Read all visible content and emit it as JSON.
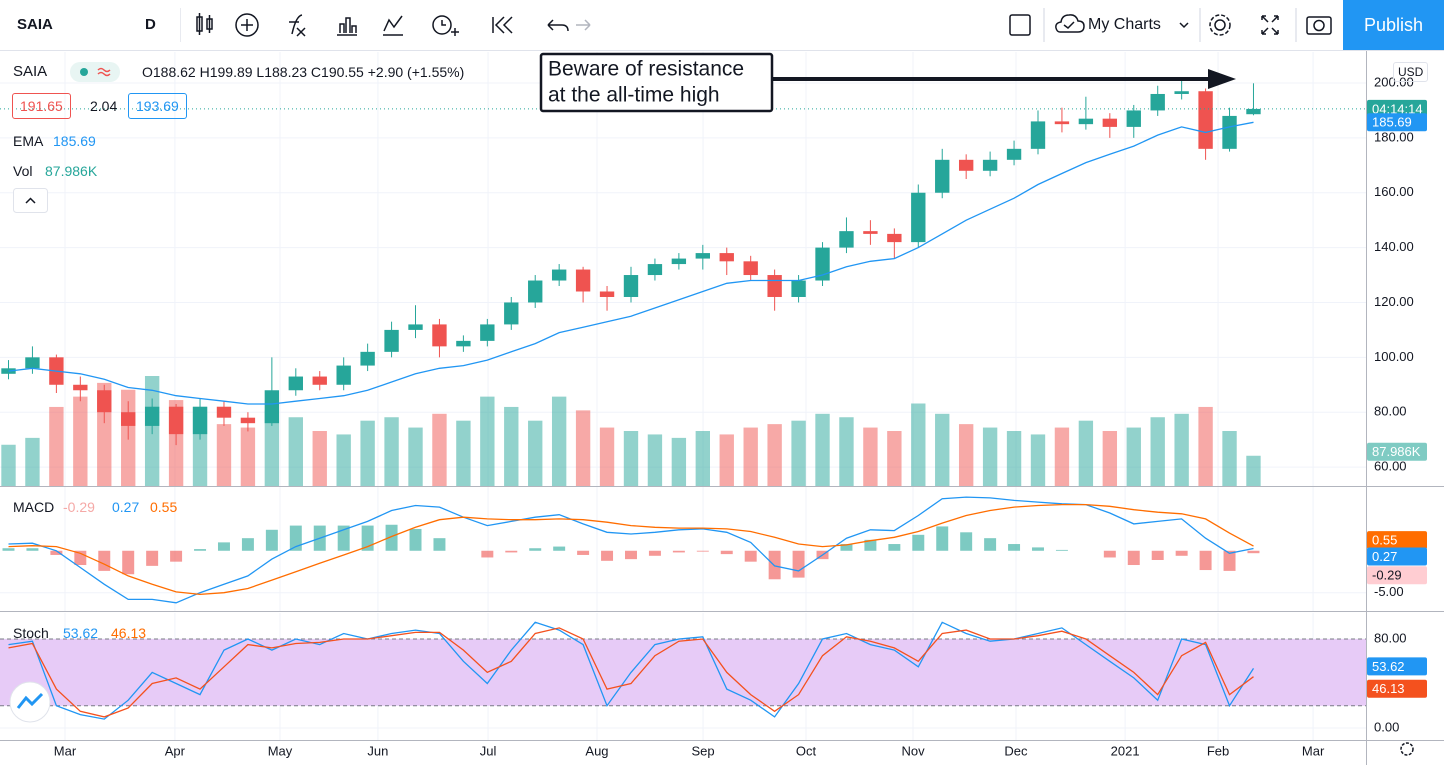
{
  "toolbar": {
    "symbol": "SAIA",
    "interval": "D",
    "my_charts": "My Charts",
    "publish": "Publish"
  },
  "legend": {
    "symbol": "SAIA",
    "ohlc": "O188.62 H199.89 L188.23 C190.55 +2.90 (+1.55%)",
    "bid": "191.65",
    "spread": "2.04",
    "ask": "193.69",
    "ema_label": "EMA",
    "ema_value": "185.69",
    "vol_label": "Vol",
    "vol_value": "87.986K",
    "countdown": "04:14:14",
    "currency": "USD",
    "macd_label": "MACD",
    "macd_hist": "-0.29",
    "macd_value": "0.27",
    "macd_signal": "0.55",
    "stoch_label": "Stoch",
    "stoch_k": "53.62",
    "stoch_d": "46.13"
  },
  "annotation": {
    "lines": [
      "Beware of resistance",
      "at the all-time high"
    ]
  },
  "chart_data": [
    {
      "type": "candlestick",
      "xlim": [
        -0.355,
        56.7
      ],
      "ylim": [
        53.1,
        211.3
      ],
      "grid": true,
      "yticks": [
        {
          "value": 60,
          "label": "60.00"
        },
        {
          "value": 80,
          "label": "80.00"
        },
        {
          "value": 100,
          "label": "100.00"
        },
        {
          "value": 120,
          "label": "120.00"
        },
        {
          "value": 140,
          "label": "140.00"
        },
        {
          "value": 160,
          "label": "160.00"
        },
        {
          "value": 180,
          "label": "180.00"
        },
        {
          "value": 200,
          "label": "200.00"
        }
      ],
      "up_color": "#26a69a",
      "down_color": "#ef5350",
      "open": [
        94,
        96,
        100,
        90,
        88,
        80,
        75,
        82,
        72,
        82,
        78,
        76,
        88,
        93,
        90,
        97,
        102,
        110,
        112,
        104,
        106,
        112,
        120,
        128,
        132,
        124,
        122,
        130,
        134,
        136,
        138,
        135,
        130,
        122,
        128,
        140,
        146,
        145,
        142,
        160,
        172,
        168,
        172,
        176,
        186,
        185,
        187,
        184,
        190,
        196,
        197,
        176,
        188.62
      ],
      "high": [
        99,
        104,
        101,
        93,
        90,
        84,
        85,
        83,
        85,
        84,
        80,
        100,
        96,
        95,
        100,
        105,
        113,
        119,
        114,
        108,
        114,
        122,
        130,
        134,
        133,
        126,
        133,
        136,
        138,
        141,
        140,
        137,
        132,
        130,
        142,
        151,
        150,
        147,
        163,
        176,
        174,
        175,
        179,
        190,
        191,
        195,
        189,
        192,
        199,
        202,
        198,
        191,
        199.89
      ],
      "low": [
        92,
        94,
        87,
        84,
        76,
        70,
        72,
        68,
        70,
        75,
        73,
        75,
        86,
        88,
        88,
        95,
        100,
        107,
        100,
        102,
        104,
        110,
        118,
        126,
        120,
        117,
        120,
        128,
        132,
        132,
        130,
        128,
        117,
        120,
        126,
        138,
        141,
        136,
        140,
        158,
        165,
        166,
        170,
        174,
        182,
        183,
        180,
        180,
        188,
        194,
        172,
        175,
        188.23
      ],
      "close": [
        96,
        100,
        90,
        88,
        80,
        75,
        82,
        72,
        82,
        78,
        76,
        88,
        93,
        90,
        97,
        102,
        110,
        112,
        104,
        106,
        112,
        120,
        128,
        132,
        124,
        122,
        130,
        134,
        136,
        138,
        135,
        130,
        122,
        128,
        140,
        146,
        145,
        142,
        160,
        172,
        168,
        172,
        176,
        186,
        185,
        187,
        184,
        190,
        196,
        197,
        176,
        188,
        190.55
      ],
      "ema": {
        "color": "#2196f3",
        "values": [
          95,
          96,
          95,
          94,
          92,
          89,
          88,
          86,
          85,
          84,
          83,
          83,
          84,
          85,
          86,
          88,
          91,
          94,
          96,
          97,
          99,
          102,
          105,
          109,
          111,
          113,
          115,
          118,
          121,
          124,
          127,
          128,
          128,
          128,
          130,
          133,
          135,
          136,
          140,
          145,
          150,
          154,
          158,
          163,
          167,
          171,
          174,
          177,
          181,
          184,
          182,
          184,
          185.69
        ]
      },
      "volume": {
        "values": [
          120,
          140,
          230,
          260,
          300,
          280,
          320,
          250,
          230,
          180,
          170,
          220,
          200,
          160,
          150,
          190,
          200,
          170,
          210,
          190,
          260,
          230,
          190,
          260,
          220,
          170,
          160,
          150,
          140,
          160,
          150,
          170,
          180,
          190,
          210,
          200,
          170,
          160,
          240,
          210,
          180,
          170,
          160,
          150,
          170,
          190,
          160,
          170,
          200,
          210,
          230,
          160,
          87.986
        ]
      }
    },
    {
      "type": "macd",
      "xlim": [
        -0.355,
        56.7
      ],
      "ylim": [
        -7.3,
        7.6
      ],
      "yticks": [
        {
          "value": -5,
          "label": "-5.00"
        }
      ],
      "macd": {
        "color": "#2196f3",
        "values": [
          0.8,
          0.9,
          0,
          -2,
          -4,
          -5.8,
          -5.8,
          -6.2,
          -5,
          -4,
          -3,
          -1,
          0.5,
          1.5,
          2.5,
          3.5,
          4.8,
          5.4,
          5.2,
          4,
          3,
          3.5,
          4,
          4.3,
          3.2,
          2.2,
          2,
          2.2,
          2.5,
          2.6,
          2.2,
          1,
          -1.8,
          -2.4,
          -0.5,
          1.5,
          2.5,
          2.4,
          4.2,
          6.2,
          6.4,
          6.3,
          6,
          5.8,
          5.6,
          5.5,
          4.5,
          3.2,
          3.5,
          3.8,
          1.5,
          -0.3,
          0.27
        ]
      },
      "signal": {
        "color": "#ff6d00",
        "values": [
          0.5,
          0.6,
          0.5,
          -0.3,
          -1.6,
          -3,
          -4,
          -4.9,
          -5.2,
          -5,
          -4.5,
          -3.5,
          -2.5,
          -1.5,
          -0.5,
          0.5,
          1.7,
          2.8,
          3.7,
          4,
          3.8,
          3.7,
          3.7,
          3.8,
          3.7,
          3.4,
          3,
          2.8,
          2.7,
          2.7,
          2.6,
          2.3,
          1.6,
          0.8,
          0.5,
          0.7,
          1.2,
          1.6,
          2.3,
          3.3,
          4.2,
          4.8,
          5.2,
          5.4,
          5.5,
          5.5,
          5.3,
          4.9,
          4.6,
          4.4,
          3.8,
          2.1,
          0.55
        ]
      },
      "histogram": {
        "up_color": "#26a69a",
        "down_color": "#ef5350",
        "values": [
          0.3,
          0.3,
          -0.5,
          -1.7,
          -2.4,
          -2.8,
          -1.8,
          -1.3,
          0.2,
          1,
          1.5,
          2.5,
          3,
          3,
          3,
          3,
          3.1,
          2.6,
          1.5,
          0,
          -0.8,
          -0.2,
          0.3,
          0.5,
          -0.5,
          -1.2,
          -1,
          -0.6,
          -0.2,
          -0.1,
          -0.4,
          -1.3,
          -3.4,
          -3.2,
          -1,
          0.8,
          1.3,
          0.8,
          1.9,
          2.9,
          2.2,
          1.5,
          0.8,
          0.4,
          0.1,
          0,
          -0.8,
          -1.7,
          -1.1,
          -0.6,
          -2.3,
          -2.4,
          -0.29
        ]
      }
    },
    {
      "type": "stochastic",
      "xlim": [
        -0.355,
        56.7
      ],
      "ylim": [
        -10.8,
        103.4
      ],
      "yticks": [
        {
          "value": 0,
          "label": "0.00"
        },
        {
          "value": 80,
          "label": "80.00"
        }
      ],
      "xticks": [
        {
          "value": 2.36,
          "label": "Mar"
        },
        {
          "value": 6.95,
          "label": "Apr"
        },
        {
          "value": 11.34,
          "label": "May"
        },
        {
          "value": 15.43,
          "label": "Jun"
        },
        {
          "value": 20.03,
          "label": "Jul"
        },
        {
          "value": 24.58,
          "label": "Aug"
        },
        {
          "value": 29.01,
          "label": "Sep"
        },
        {
          "value": 33.31,
          "label": "Oct"
        },
        {
          "value": 37.78,
          "label": "Nov"
        },
        {
          "value": 42.08,
          "label": "Dec"
        },
        {
          "value": 46.64,
          "label": "2021"
        },
        {
          "value": 50.52,
          "label": "Feb"
        },
        {
          "value": 54.49,
          "label": "Mar"
        }
      ],
      "bands": [
        20,
        80
      ],
      "band_color": "#e7cbf7",
      "k": {
        "color": "#2196f3",
        "values": [
          75,
          78,
          20,
          12,
          8,
          25,
          50,
          40,
          30,
          70,
          80,
          70,
          80,
          75,
          85,
          80,
          85,
          88,
          85,
          60,
          40,
          70,
          95,
          88,
          75,
          20,
          50,
          75,
          80,
          82,
          35,
          25,
          10,
          40,
          80,
          85,
          75,
          70,
          55,
          95,
          85,
          78,
          80,
          85,
          90,
          75,
          60,
          45,
          25,
          80,
          75,
          20,
          53.62
        ]
      },
      "d": {
        "color": "#f4511e",
        "values": [
          72,
          76,
          35,
          15,
          10,
          18,
          40,
          45,
          35,
          55,
          75,
          72,
          76,
          77,
          80,
          80,
          83,
          86,
          86,
          70,
          50,
          60,
          85,
          90,
          80,
          35,
          40,
          65,
          78,
          80,
          50,
          30,
          15,
          30,
          65,
          82,
          78,
          72,
          60,
          85,
          88,
          80,
          80,
          83,
          87,
          80,
          65,
          50,
          30,
          65,
          77,
          30,
          46.13
        ]
      }
    }
  ]
}
